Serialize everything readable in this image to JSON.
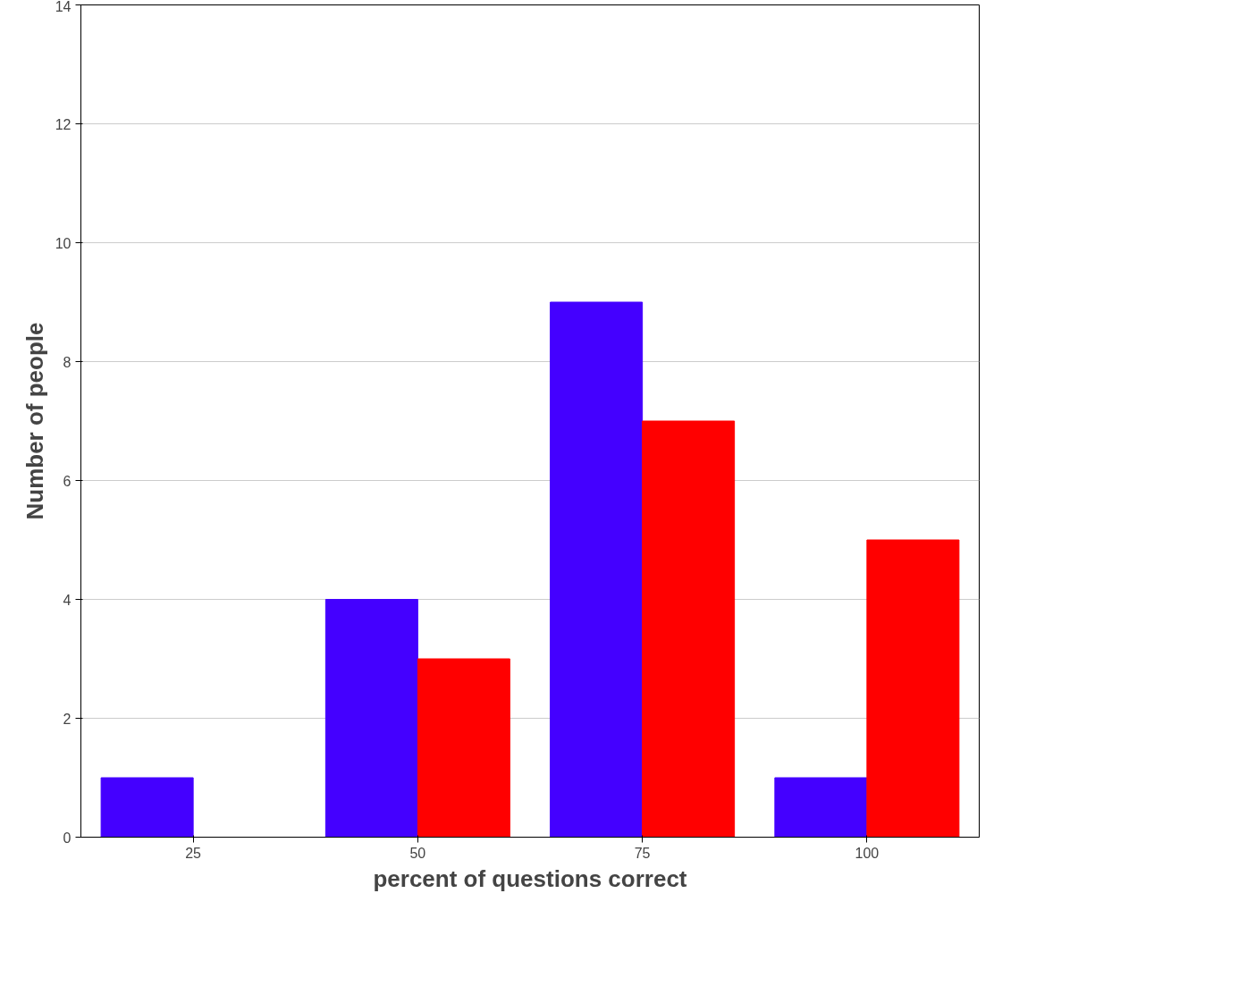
{
  "chart_data": {
    "type": "bar",
    "xlabel": "percent of questions correct",
    "ylabel": "Number of people",
    "categories": [
      "25",
      "50",
      "75",
      "100"
    ],
    "series": [
      {
        "color": "#4400ff",
        "values": [
          1,
          4,
          9,
          1
        ]
      },
      {
        "color": "#ff0000",
        "values": [
          0,
          3,
          7,
          5
        ]
      }
    ],
    "ylim": [
      0,
      14
    ],
    "yticks": [
      0,
      2,
      4,
      6,
      8,
      10,
      12,
      14
    ],
    "grid": "y"
  }
}
